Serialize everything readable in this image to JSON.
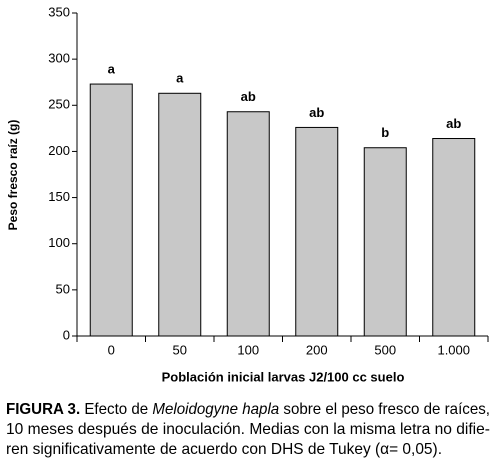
{
  "chart_data": {
    "type": "bar",
    "categories": [
      "0",
      "50",
      "100",
      "200",
      "500",
      "1.000"
    ],
    "values": [
      273,
      263,
      243,
      226,
      204,
      214
    ],
    "letters": [
      "a",
      "a",
      "ab",
      "ab",
      "b",
      "ab"
    ],
    "color": "#c8c8c8",
    "ylim": [
      0,
      350
    ],
    "yticks": [
      0,
      50,
      100,
      150,
      200,
      250,
      300,
      350
    ],
    "ylabel": "Peso fresco raíz (g)",
    "xlabel": "Población inicial larvas J2/100 cc suelo",
    "caption": {
      "line1": [
        "FIGURA 3.",
        " Efecto de ",
        "Meloidogyne hapla",
        " sobre el peso fresco de raíces,"
      ],
      "line2": "10 meses después de inoculación. Medias con la misma letra no difie-",
      "line3": "ren significativamente de acuerdo con DHS de Tukey (α= 0,05)."
    }
  }
}
